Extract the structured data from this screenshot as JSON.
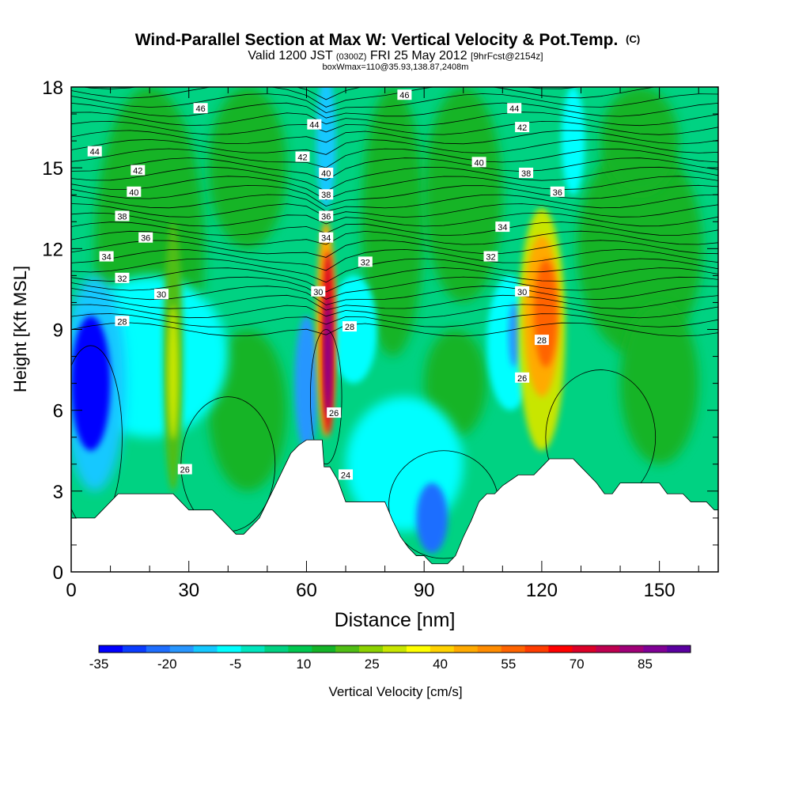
{
  "chart_data": {
    "type": "heatmap",
    "title": "Wind-Parallel Section at Max W: Vertical Velocity & Pot.Temp.",
    "title_mark": "(C)",
    "subtitle_valid": "Valid 1200 JST",
    "subtitle_zulu": "(0300Z)",
    "subtitle_date": "FRI 25 May 2012",
    "subtitle_fcst": "[9hrFcst@2154z]",
    "subtitle2": "boxWmax=110@35.93,138.87,2408m",
    "xlabel": "Distance [nm]",
    "ylabel": "Height [Kft MSL]",
    "xlim": [
      0,
      165
    ],
    "ylim": [
      0,
      18
    ],
    "x_ticks": [
      "0",
      "30",
      "60",
      "90",
      "120",
      "150"
    ],
    "y_ticks": [
      "0",
      "3",
      "6",
      "9",
      "12",
      "15",
      "18"
    ],
    "colorbar": {
      "label": "Vertical Velocity [cm/s]",
      "tick_labels": [
        "-35",
        "-20",
        "-5",
        "10",
        "25",
        "40",
        "55",
        "70",
        "85"
      ],
      "range": [
        -35,
        95
      ],
      "colors": [
        "#0000ff",
        "#0a3cff",
        "#1e6eff",
        "#2896ff",
        "#14c8ff",
        "#00ffff",
        "#00e6be",
        "#00d282",
        "#00c850",
        "#14b428",
        "#50be14",
        "#8cd200",
        "#c8e600",
        "#ffff00",
        "#ffd200",
        "#ffaa00",
        "#ff8c00",
        "#ff6400",
        "#ff3c00",
        "#ff0000",
        "#dc0028",
        "#be0050",
        "#a00078",
        "#800096",
        "#5a00a0"
      ]
    },
    "vertical_velocity_features": [
      {
        "x": 5,
        "y": 7.0,
        "value": -32
      },
      {
        "x": 26,
        "y": 7.5,
        "value": 30
      },
      {
        "x": 60,
        "y": 7.0,
        "value": -18
      },
      {
        "x": 65,
        "y": 8.5,
        "value": 80
      },
      {
        "x": 93,
        "y": 2.0,
        "value": -20
      },
      {
        "x": 113,
        "y": 8.8,
        "value": -15
      },
      {
        "x": 120,
        "y": 9.5,
        "value": 60
      },
      {
        "x": 145,
        "y": 12,
        "value": 15
      }
    ],
    "terrain_profile": [
      [
        0,
        2
      ],
      [
        6,
        2
      ],
      [
        8,
        2.3
      ],
      [
        10,
        2.6
      ],
      [
        12,
        2.9
      ],
      [
        26,
        2.9
      ],
      [
        28,
        2.6
      ],
      [
        30,
        2.3
      ],
      [
        36,
        2.3
      ],
      [
        38,
        2
      ],
      [
        40,
        1.7
      ],
      [
        42,
        1.4
      ],
      [
        44,
        1.4
      ],
      [
        46,
        1.7
      ],
      [
        48,
        2
      ],
      [
        50,
        2.6
      ],
      [
        52,
        3.2
      ],
      [
        54,
        3.8
      ],
      [
        56,
        4.4
      ],
      [
        58,
        4.7
      ],
      [
        60,
        4.9
      ],
      [
        64,
        4.9
      ],
      [
        64.5,
        3.9
      ],
      [
        66,
        3.9
      ],
      [
        68,
        3.4
      ],
      [
        70,
        2.6
      ],
      [
        80,
        2.6
      ],
      [
        82,
        1.9
      ],
      [
        84,
        1.3
      ],
      [
        86,
        0.9
      ],
      [
        88,
        0.6
      ],
      [
        90,
        0.6
      ],
      [
        92,
        0.3
      ],
      [
        96,
        0.3
      ],
      [
        98,
        0.6
      ],
      [
        100,
        1.3
      ],
      [
        102,
        1.9
      ],
      [
        104,
        2.6
      ],
      [
        106,
        2.9
      ],
      [
        108,
        2.9
      ],
      [
        110,
        3.2
      ],
      [
        114,
        3.6
      ],
      [
        118,
        3.6
      ],
      [
        120,
        3.9
      ],
      [
        122,
        4.2
      ],
      [
        128,
        4.2
      ],
      [
        130,
        3.9
      ],
      [
        132,
        3.6
      ],
      [
        134,
        3.3
      ],
      [
        136,
        2.9
      ],
      [
        138,
        2.9
      ],
      [
        140,
        3.3
      ],
      [
        150,
        3.3
      ],
      [
        152,
        2.9
      ],
      [
        156,
        2.9
      ],
      [
        158,
        2.6
      ],
      [
        162,
        2.6
      ],
      [
        164,
        2.3
      ],
      [
        165,
        2.3
      ]
    ],
    "potential_temperature_labels": [
      {
        "text": "46",
        "x": 33,
        "y": 17.2
      },
      {
        "text": "46",
        "x": 85,
        "y": 17.7
      },
      {
        "text": "44",
        "x": 6,
        "y": 15.6
      },
      {
        "text": "44",
        "x": 62,
        "y": 16.6
      },
      {
        "text": "44",
        "x": 113,
        "y": 17.2
      },
      {
        "text": "42",
        "x": 17,
        "y": 14.9
      },
      {
        "text": "42",
        "x": 59,
        "y": 15.4
      },
      {
        "text": "42",
        "x": 115,
        "y": 16.5
      },
      {
        "text": "40",
        "x": 16,
        "y": 14.1
      },
      {
        "text": "40",
        "x": 65,
        "y": 14.8
      },
      {
        "text": "40",
        "x": 104,
        "y": 15.2
      },
      {
        "text": "38",
        "x": 13,
        "y": 13.2
      },
      {
        "text": "38",
        "x": 65,
        "y": 14.0
      },
      {
        "text": "38",
        "x": 116,
        "y": 14.8
      },
      {
        "text": "36",
        "x": 19,
        "y": 12.4
      },
      {
        "text": "36",
        "x": 65,
        "y": 13.2
      },
      {
        "text": "36",
        "x": 124,
        "y": 14.1
      },
      {
        "text": "34",
        "x": 9,
        "y": 11.7
      },
      {
        "text": "34",
        "x": 65,
        "y": 12.4
      },
      {
        "text": "34",
        "x": 110,
        "y": 12.8
      },
      {
        "text": "32",
        "x": 13,
        "y": 10.9
      },
      {
        "text": "32",
        "x": 75,
        "y": 11.5
      },
      {
        "text": "32",
        "x": 107,
        "y": 11.7
      },
      {
        "text": "30",
        "x": 23,
        "y": 10.3
      },
      {
        "text": "30",
        "x": 63,
        "y": 10.4
      },
      {
        "text": "30",
        "x": 115,
        "y": 10.4
      },
      {
        "text": "28",
        "x": 13,
        "y": 9.3
      },
      {
        "text": "28",
        "x": 71,
        "y": 9.1
      },
      {
        "text": "28",
        "x": 120,
        "y": 8.6
      },
      {
        "text": "26",
        "x": 67,
        "y": 5.9
      },
      {
        "text": "26",
        "x": 115,
        "y": 7.2
      },
      {
        "text": "26",
        "x": 29,
        "y": 3.8
      },
      {
        "text": "24",
        "x": 70,
        "y": 3.6
      }
    ]
  }
}
